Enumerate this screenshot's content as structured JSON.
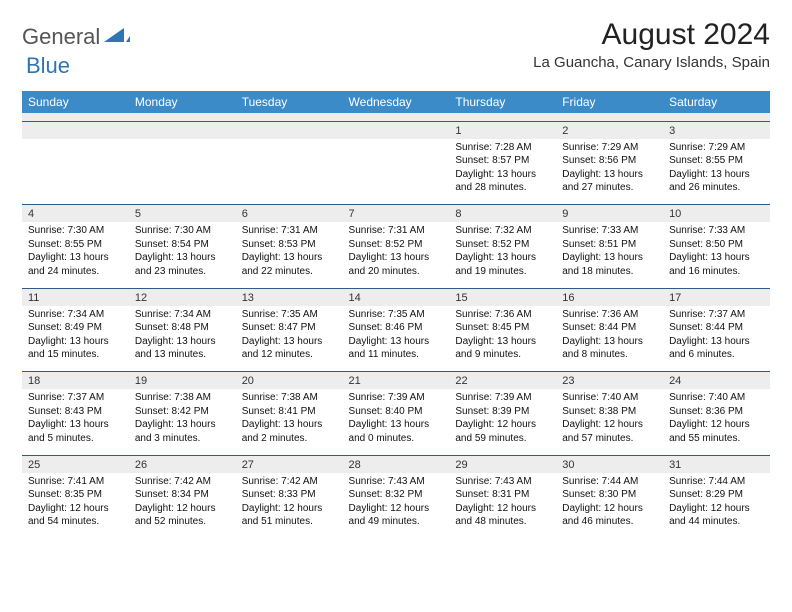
{
  "brand": {
    "general": "General",
    "blue": "Blue"
  },
  "title": "August 2024",
  "location": "La Guancha, Canary Islands, Spain",
  "colors": {
    "header_bg": "#3b8bc8",
    "header_text": "#ffffff",
    "daynum_bg": "#ededed",
    "border": "#2e5b8a",
    "logo_gray": "#555555",
    "logo_blue": "#2e75b6"
  },
  "day_headers": [
    "Sunday",
    "Monday",
    "Tuesday",
    "Wednesday",
    "Thursday",
    "Friday",
    "Saturday"
  ],
  "weeks": [
    [
      null,
      null,
      null,
      null,
      {
        "n": "1",
        "sr": "Sunrise: 7:28 AM",
        "ss": "Sunset: 8:57 PM",
        "dl1": "Daylight: 13 hours",
        "dl2": "and 28 minutes."
      },
      {
        "n": "2",
        "sr": "Sunrise: 7:29 AM",
        "ss": "Sunset: 8:56 PM",
        "dl1": "Daylight: 13 hours",
        "dl2": "and 27 minutes."
      },
      {
        "n": "3",
        "sr": "Sunrise: 7:29 AM",
        "ss": "Sunset: 8:55 PM",
        "dl1": "Daylight: 13 hours",
        "dl2": "and 26 minutes."
      }
    ],
    [
      {
        "n": "4",
        "sr": "Sunrise: 7:30 AM",
        "ss": "Sunset: 8:55 PM",
        "dl1": "Daylight: 13 hours",
        "dl2": "and 24 minutes."
      },
      {
        "n": "5",
        "sr": "Sunrise: 7:30 AM",
        "ss": "Sunset: 8:54 PM",
        "dl1": "Daylight: 13 hours",
        "dl2": "and 23 minutes."
      },
      {
        "n": "6",
        "sr": "Sunrise: 7:31 AM",
        "ss": "Sunset: 8:53 PM",
        "dl1": "Daylight: 13 hours",
        "dl2": "and 22 minutes."
      },
      {
        "n": "7",
        "sr": "Sunrise: 7:31 AM",
        "ss": "Sunset: 8:52 PM",
        "dl1": "Daylight: 13 hours",
        "dl2": "and 20 minutes."
      },
      {
        "n": "8",
        "sr": "Sunrise: 7:32 AM",
        "ss": "Sunset: 8:52 PM",
        "dl1": "Daylight: 13 hours",
        "dl2": "and 19 minutes."
      },
      {
        "n": "9",
        "sr": "Sunrise: 7:33 AM",
        "ss": "Sunset: 8:51 PM",
        "dl1": "Daylight: 13 hours",
        "dl2": "and 18 minutes."
      },
      {
        "n": "10",
        "sr": "Sunrise: 7:33 AM",
        "ss": "Sunset: 8:50 PM",
        "dl1": "Daylight: 13 hours",
        "dl2": "and 16 minutes."
      }
    ],
    [
      {
        "n": "11",
        "sr": "Sunrise: 7:34 AM",
        "ss": "Sunset: 8:49 PM",
        "dl1": "Daylight: 13 hours",
        "dl2": "and 15 minutes."
      },
      {
        "n": "12",
        "sr": "Sunrise: 7:34 AM",
        "ss": "Sunset: 8:48 PM",
        "dl1": "Daylight: 13 hours",
        "dl2": "and 13 minutes."
      },
      {
        "n": "13",
        "sr": "Sunrise: 7:35 AM",
        "ss": "Sunset: 8:47 PM",
        "dl1": "Daylight: 13 hours",
        "dl2": "and 12 minutes."
      },
      {
        "n": "14",
        "sr": "Sunrise: 7:35 AM",
        "ss": "Sunset: 8:46 PM",
        "dl1": "Daylight: 13 hours",
        "dl2": "and 11 minutes."
      },
      {
        "n": "15",
        "sr": "Sunrise: 7:36 AM",
        "ss": "Sunset: 8:45 PM",
        "dl1": "Daylight: 13 hours",
        "dl2": "and 9 minutes."
      },
      {
        "n": "16",
        "sr": "Sunrise: 7:36 AM",
        "ss": "Sunset: 8:44 PM",
        "dl1": "Daylight: 13 hours",
        "dl2": "and 8 minutes."
      },
      {
        "n": "17",
        "sr": "Sunrise: 7:37 AM",
        "ss": "Sunset: 8:44 PM",
        "dl1": "Daylight: 13 hours",
        "dl2": "and 6 minutes."
      }
    ],
    [
      {
        "n": "18",
        "sr": "Sunrise: 7:37 AM",
        "ss": "Sunset: 8:43 PM",
        "dl1": "Daylight: 13 hours",
        "dl2": "and 5 minutes."
      },
      {
        "n": "19",
        "sr": "Sunrise: 7:38 AM",
        "ss": "Sunset: 8:42 PM",
        "dl1": "Daylight: 13 hours",
        "dl2": "and 3 minutes."
      },
      {
        "n": "20",
        "sr": "Sunrise: 7:38 AM",
        "ss": "Sunset: 8:41 PM",
        "dl1": "Daylight: 13 hours",
        "dl2": "and 2 minutes."
      },
      {
        "n": "21",
        "sr": "Sunrise: 7:39 AM",
        "ss": "Sunset: 8:40 PM",
        "dl1": "Daylight: 13 hours",
        "dl2": "and 0 minutes."
      },
      {
        "n": "22",
        "sr": "Sunrise: 7:39 AM",
        "ss": "Sunset: 8:39 PM",
        "dl1": "Daylight: 12 hours",
        "dl2": "and 59 minutes."
      },
      {
        "n": "23",
        "sr": "Sunrise: 7:40 AM",
        "ss": "Sunset: 8:38 PM",
        "dl1": "Daylight: 12 hours",
        "dl2": "and 57 minutes."
      },
      {
        "n": "24",
        "sr": "Sunrise: 7:40 AM",
        "ss": "Sunset: 8:36 PM",
        "dl1": "Daylight: 12 hours",
        "dl2": "and 55 minutes."
      }
    ],
    [
      {
        "n": "25",
        "sr": "Sunrise: 7:41 AM",
        "ss": "Sunset: 8:35 PM",
        "dl1": "Daylight: 12 hours",
        "dl2": "and 54 minutes."
      },
      {
        "n": "26",
        "sr": "Sunrise: 7:42 AM",
        "ss": "Sunset: 8:34 PM",
        "dl1": "Daylight: 12 hours",
        "dl2": "and 52 minutes."
      },
      {
        "n": "27",
        "sr": "Sunrise: 7:42 AM",
        "ss": "Sunset: 8:33 PM",
        "dl1": "Daylight: 12 hours",
        "dl2": "and 51 minutes."
      },
      {
        "n": "28",
        "sr": "Sunrise: 7:43 AM",
        "ss": "Sunset: 8:32 PM",
        "dl1": "Daylight: 12 hours",
        "dl2": "and 49 minutes."
      },
      {
        "n": "29",
        "sr": "Sunrise: 7:43 AM",
        "ss": "Sunset: 8:31 PM",
        "dl1": "Daylight: 12 hours",
        "dl2": "and 48 minutes."
      },
      {
        "n": "30",
        "sr": "Sunrise: 7:44 AM",
        "ss": "Sunset: 8:30 PM",
        "dl1": "Daylight: 12 hours",
        "dl2": "and 46 minutes."
      },
      {
        "n": "31",
        "sr": "Sunrise: 7:44 AM",
        "ss": "Sunset: 8:29 PM",
        "dl1": "Daylight: 12 hours",
        "dl2": "and 44 minutes."
      }
    ]
  ]
}
